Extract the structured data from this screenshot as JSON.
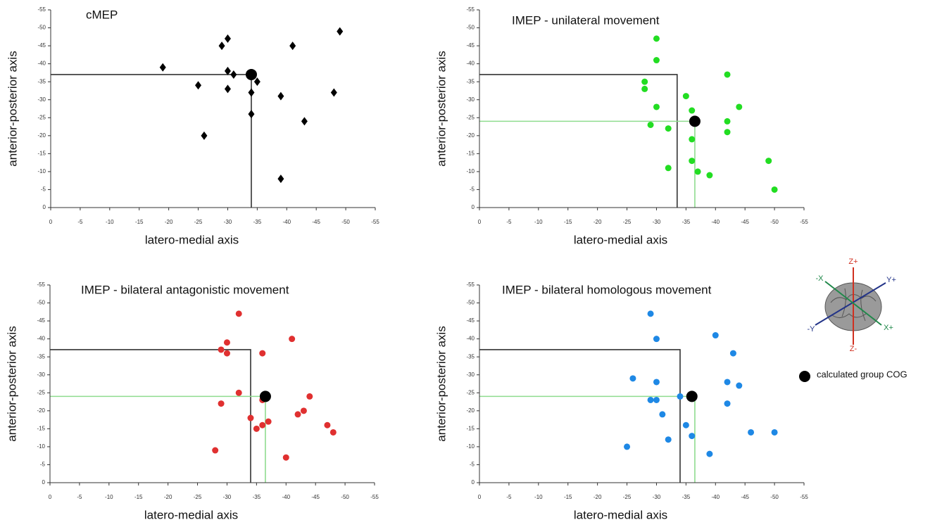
{
  "chart_data": [
    {
      "type": "scatter",
      "title": "cMEP",
      "xlabel": "latero-medial axis",
      "ylabel": "anterior-posterior axis",
      "xlim": [
        0,
        -55
      ],
      "ylim": [
        0,
        -55
      ],
      "xticks": [
        0,
        -5,
        -10,
        -15,
        -20,
        -25,
        -30,
        -35,
        -40,
        -45,
        -50,
        -55
      ],
      "yticks": [
        0,
        -5,
        -10,
        -15,
        -20,
        -25,
        -30,
        -35,
        -40,
        -45,
        -50,
        -55
      ],
      "series": [
        {
          "color": "#000000",
          "marker": "diamond",
          "x": [
            -19,
            -25,
            -26,
            -29,
            -30,
            -30,
            -30,
            -31,
            -34,
            -34,
            -35,
            -39,
            -39,
            -41,
            -43,
            -48,
            -49
          ],
          "y": [
            -39,
            -34,
            -20,
            -45,
            -47,
            -38,
            -33,
            -37,
            -32,
            -26,
            -35,
            -31,
            -8,
            -45,
            -24,
            -32,
            -49
          ]
        }
      ],
      "cog": {
        "x": -34,
        "y": -37,
        "color": "#000000"
      },
      "guides": [
        {
          "x": -34,
          "y": -37,
          "color": "#333333"
        }
      ]
    },
    {
      "type": "scatter",
      "title": "IMEP - unilateral movement",
      "xlabel": "latero-medial axis",
      "ylabel": "anterior-posterior axis",
      "xlim": [
        0,
        -55
      ],
      "ylim": [
        0,
        -55
      ],
      "xticks": [
        0,
        -5,
        -10,
        -15,
        -20,
        -25,
        -30,
        -35,
        -40,
        -45,
        -50,
        -55
      ],
      "yticks": [
        0,
        -5,
        -10,
        -15,
        -20,
        -25,
        -30,
        -35,
        -40,
        -45,
        -50,
        -55
      ],
      "series": [
        {
          "color": "#22dd22",
          "marker": "circle",
          "x": [
            -30,
            -30,
            -28,
            -28,
            -30,
            -29,
            -32,
            -32,
            -35,
            -36,
            -36,
            -36,
            -37,
            -39,
            -42,
            -42,
            -42,
            -44,
            -49,
            -50
          ],
          "y": [
            -47,
            -41,
            -35,
            -33,
            -28,
            -23,
            -22,
            -11,
            -31,
            -27,
            -19,
            -13,
            -10,
            -9,
            -37,
            -24,
            -21,
            -28,
            -13,
            -5
          ]
        }
      ],
      "cog": {
        "x": -36.5,
        "y": -24,
        "color": "#000000"
      },
      "guides": [
        {
          "x": -33.5,
          "y": -37,
          "color": "#333333"
        },
        {
          "x": -36.5,
          "y": -24,
          "color": "#8fdc8f"
        }
      ]
    },
    {
      "type": "scatter",
      "title": "IMEP  - bilateral antagonistic movement",
      "xlabel": "latero-medial axis",
      "ylabel": "anterior-posterior axis",
      "xlim": [
        0,
        -55
      ],
      "ylim": [
        0,
        -55
      ],
      "xticks": [
        0,
        -5,
        -10,
        -15,
        -20,
        -25,
        -30,
        -35,
        -40,
        -45,
        -50,
        -55
      ],
      "yticks": [
        0,
        -5,
        -10,
        -15,
        -20,
        -25,
        -30,
        -35,
        -40,
        -45,
        -50,
        -55
      ],
      "series": [
        {
          "color": "#e03030",
          "marker": "circle",
          "x": [
            -32,
            -30,
            -29,
            -30,
            -36,
            -32,
            -29,
            -41,
            -34,
            -35,
            -36,
            -37,
            -36,
            -42,
            -43,
            -44,
            -47,
            -48,
            -28,
            -40
          ],
          "y": [
            -47,
            -39,
            -37,
            -36,
            -36,
            -25,
            -22,
            -40,
            -18,
            -15,
            -16,
            -17,
            -23,
            -19,
            -20,
            -24,
            -16,
            -14,
            -9,
            -7
          ]
        }
      ],
      "cog": {
        "x": -36.5,
        "y": -24,
        "color": "#000000"
      },
      "guides": [
        {
          "x": -34,
          "y": -37,
          "color": "#333333"
        },
        {
          "x": -36.5,
          "y": -24,
          "color": "#8fdc8f"
        }
      ]
    },
    {
      "type": "scatter",
      "title": "IMEP - bilateral homologous movement",
      "xlabel": "latero-medial axis",
      "ylabel": "anterior-posterior axis",
      "xlim": [
        0,
        -55
      ],
      "ylim": [
        0,
        -55
      ],
      "xticks": [
        0,
        -5,
        -10,
        -15,
        -20,
        -25,
        -30,
        -35,
        -40,
        -45,
        -50,
        -55
      ],
      "yticks": [
        0,
        -5,
        -10,
        -15,
        -20,
        -25,
        -30,
        -35,
        -40,
        -45,
        -50,
        -55
      ],
      "series": [
        {
          "color": "#1e88e5",
          "marker": "circle",
          "x": [
            -26,
            -25,
            -30,
            -29,
            -30,
            -29,
            -30,
            -31,
            -32,
            -34,
            -35,
            -36,
            -39,
            -40,
            -43,
            -42,
            -44,
            -42,
            -46,
            -50
          ],
          "y": [
            -29,
            -10,
            -40,
            -47,
            -28,
            -23,
            -23,
            -19,
            -12,
            -24,
            -16,
            -13,
            -8,
            -41,
            -36,
            -28,
            -27,
            -22,
            -14,
            -14
          ]
        }
      ],
      "cog": {
        "x": -36,
        "y": -24,
        "color": "#000000"
      },
      "guides": [
        {
          "x": -34,
          "y": -37,
          "color": "#333333"
        },
        {
          "x": -36.5,
          "y": -24,
          "color": "#8fdc8f"
        }
      ]
    }
  ],
  "legend": {
    "label": "calculated group COG",
    "color": "#000000"
  },
  "orientation_icon": {
    "labels": [
      "Z+",
      "Z-",
      "Y+",
      "-Y",
      "X+",
      "-X"
    ]
  }
}
